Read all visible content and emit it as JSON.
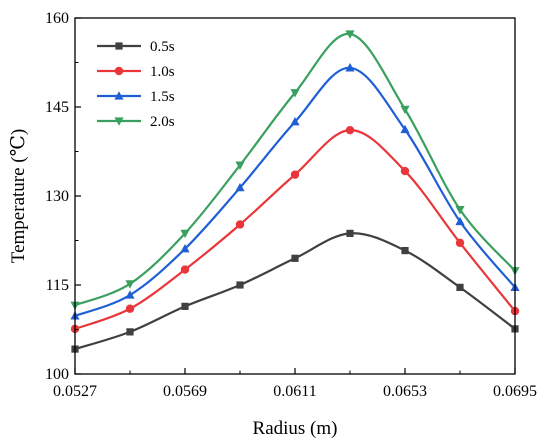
{
  "chart_data": {
    "type": "line",
    "xlabel": "Radius (m)",
    "ylabel": "Temperature (℃)",
    "xlim": [
      0.0527,
      0.0695
    ],
    "ylim": [
      100,
      160
    ],
    "xticks": [
      "0.0527",
      "0.0569",
      "0.0611",
      "0.0653",
      "0.0695"
    ],
    "yticks": [
      "100",
      "115",
      "130",
      "145",
      "160"
    ],
    "x": [
      0.0527,
      0.0548,
      0.0569,
      0.059,
      0.0611,
      0.0632,
      0.0653,
      0.0674,
      0.0695
    ],
    "legend_position": "top-left",
    "grid": false,
    "series": [
      {
        "name": "0.5s",
        "color": "#404040",
        "marker": "square",
        "values": [
          104.2,
          107.1,
          111.4,
          115.0,
          119.5,
          123.7,
          120.8,
          114.6,
          107.6
        ]
      },
      {
        "name": "1.0s",
        "color": "#e8363a",
        "marker": "circle",
        "values": [
          107.6,
          111.0,
          117.6,
          125.2,
          133.6,
          141.1,
          134.2,
          122.1,
          110.6
        ]
      },
      {
        "name": "1.5s",
        "color": "#1f5fd6",
        "marker": "triangle-up",
        "values": [
          109.8,
          113.3,
          121.1,
          131.4,
          142.5,
          151.6,
          141.2,
          125.7,
          114.6
        ]
      },
      {
        "name": "2.0s",
        "color": "#3aa060",
        "marker": "triangle-down",
        "values": [
          111.6,
          115.2,
          123.7,
          135.2,
          147.4,
          157.3,
          144.6,
          127.7,
          117.4
        ]
      }
    ]
  }
}
